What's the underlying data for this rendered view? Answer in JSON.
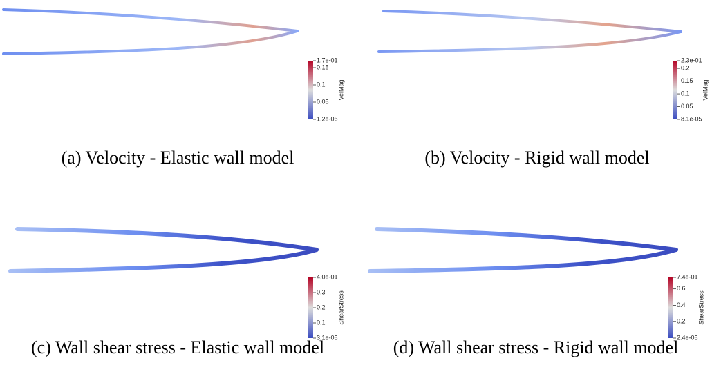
{
  "panels": [
    {
      "caption": "(a) Velocity - Elastic wall model",
      "colorbar": {
        "label": "VelMag",
        "max": {
          "value": 0.17,
          "label": "1.7e-01"
        },
        "min": {
          "value": 1.2e-06,
          "label": "1.2e-06"
        },
        "ticks": [
          0.15,
          0.1,
          0.05
        ]
      }
    },
    {
      "caption": "(b) Velocity - Rigid wall model",
      "colorbar": {
        "label": "VelMag",
        "max": {
          "value": 0.23,
          "label": "2.3e-01"
        },
        "min": {
          "value": 8.1e-05,
          "label": "8.1e-05"
        },
        "ticks": [
          0.2,
          0.15,
          0.1,
          0.05
        ]
      }
    },
    {
      "caption": "(c) Wall shear stress - Elastic wall model",
      "colorbar": {
        "label": "ShearStress",
        "max": {
          "value": 0.4,
          "label": "4.0e-01"
        },
        "min": {
          "value": 3.1e-05,
          "label": "3.1e-05"
        },
        "ticks": [
          0.3,
          0.2,
          0.1
        ]
      }
    },
    {
      "caption": "(d) Wall shear stress - Rigid wall model",
      "colorbar": {
        "label": "ShearStress",
        "max": {
          "value": 0.74,
          "label": "7.4e-01"
        },
        "min": {
          "value": 2.4e-05,
          "label": "2.4e-05"
        },
        "ticks": [
          0.6,
          0.4,
          0.2
        ]
      }
    }
  ]
}
